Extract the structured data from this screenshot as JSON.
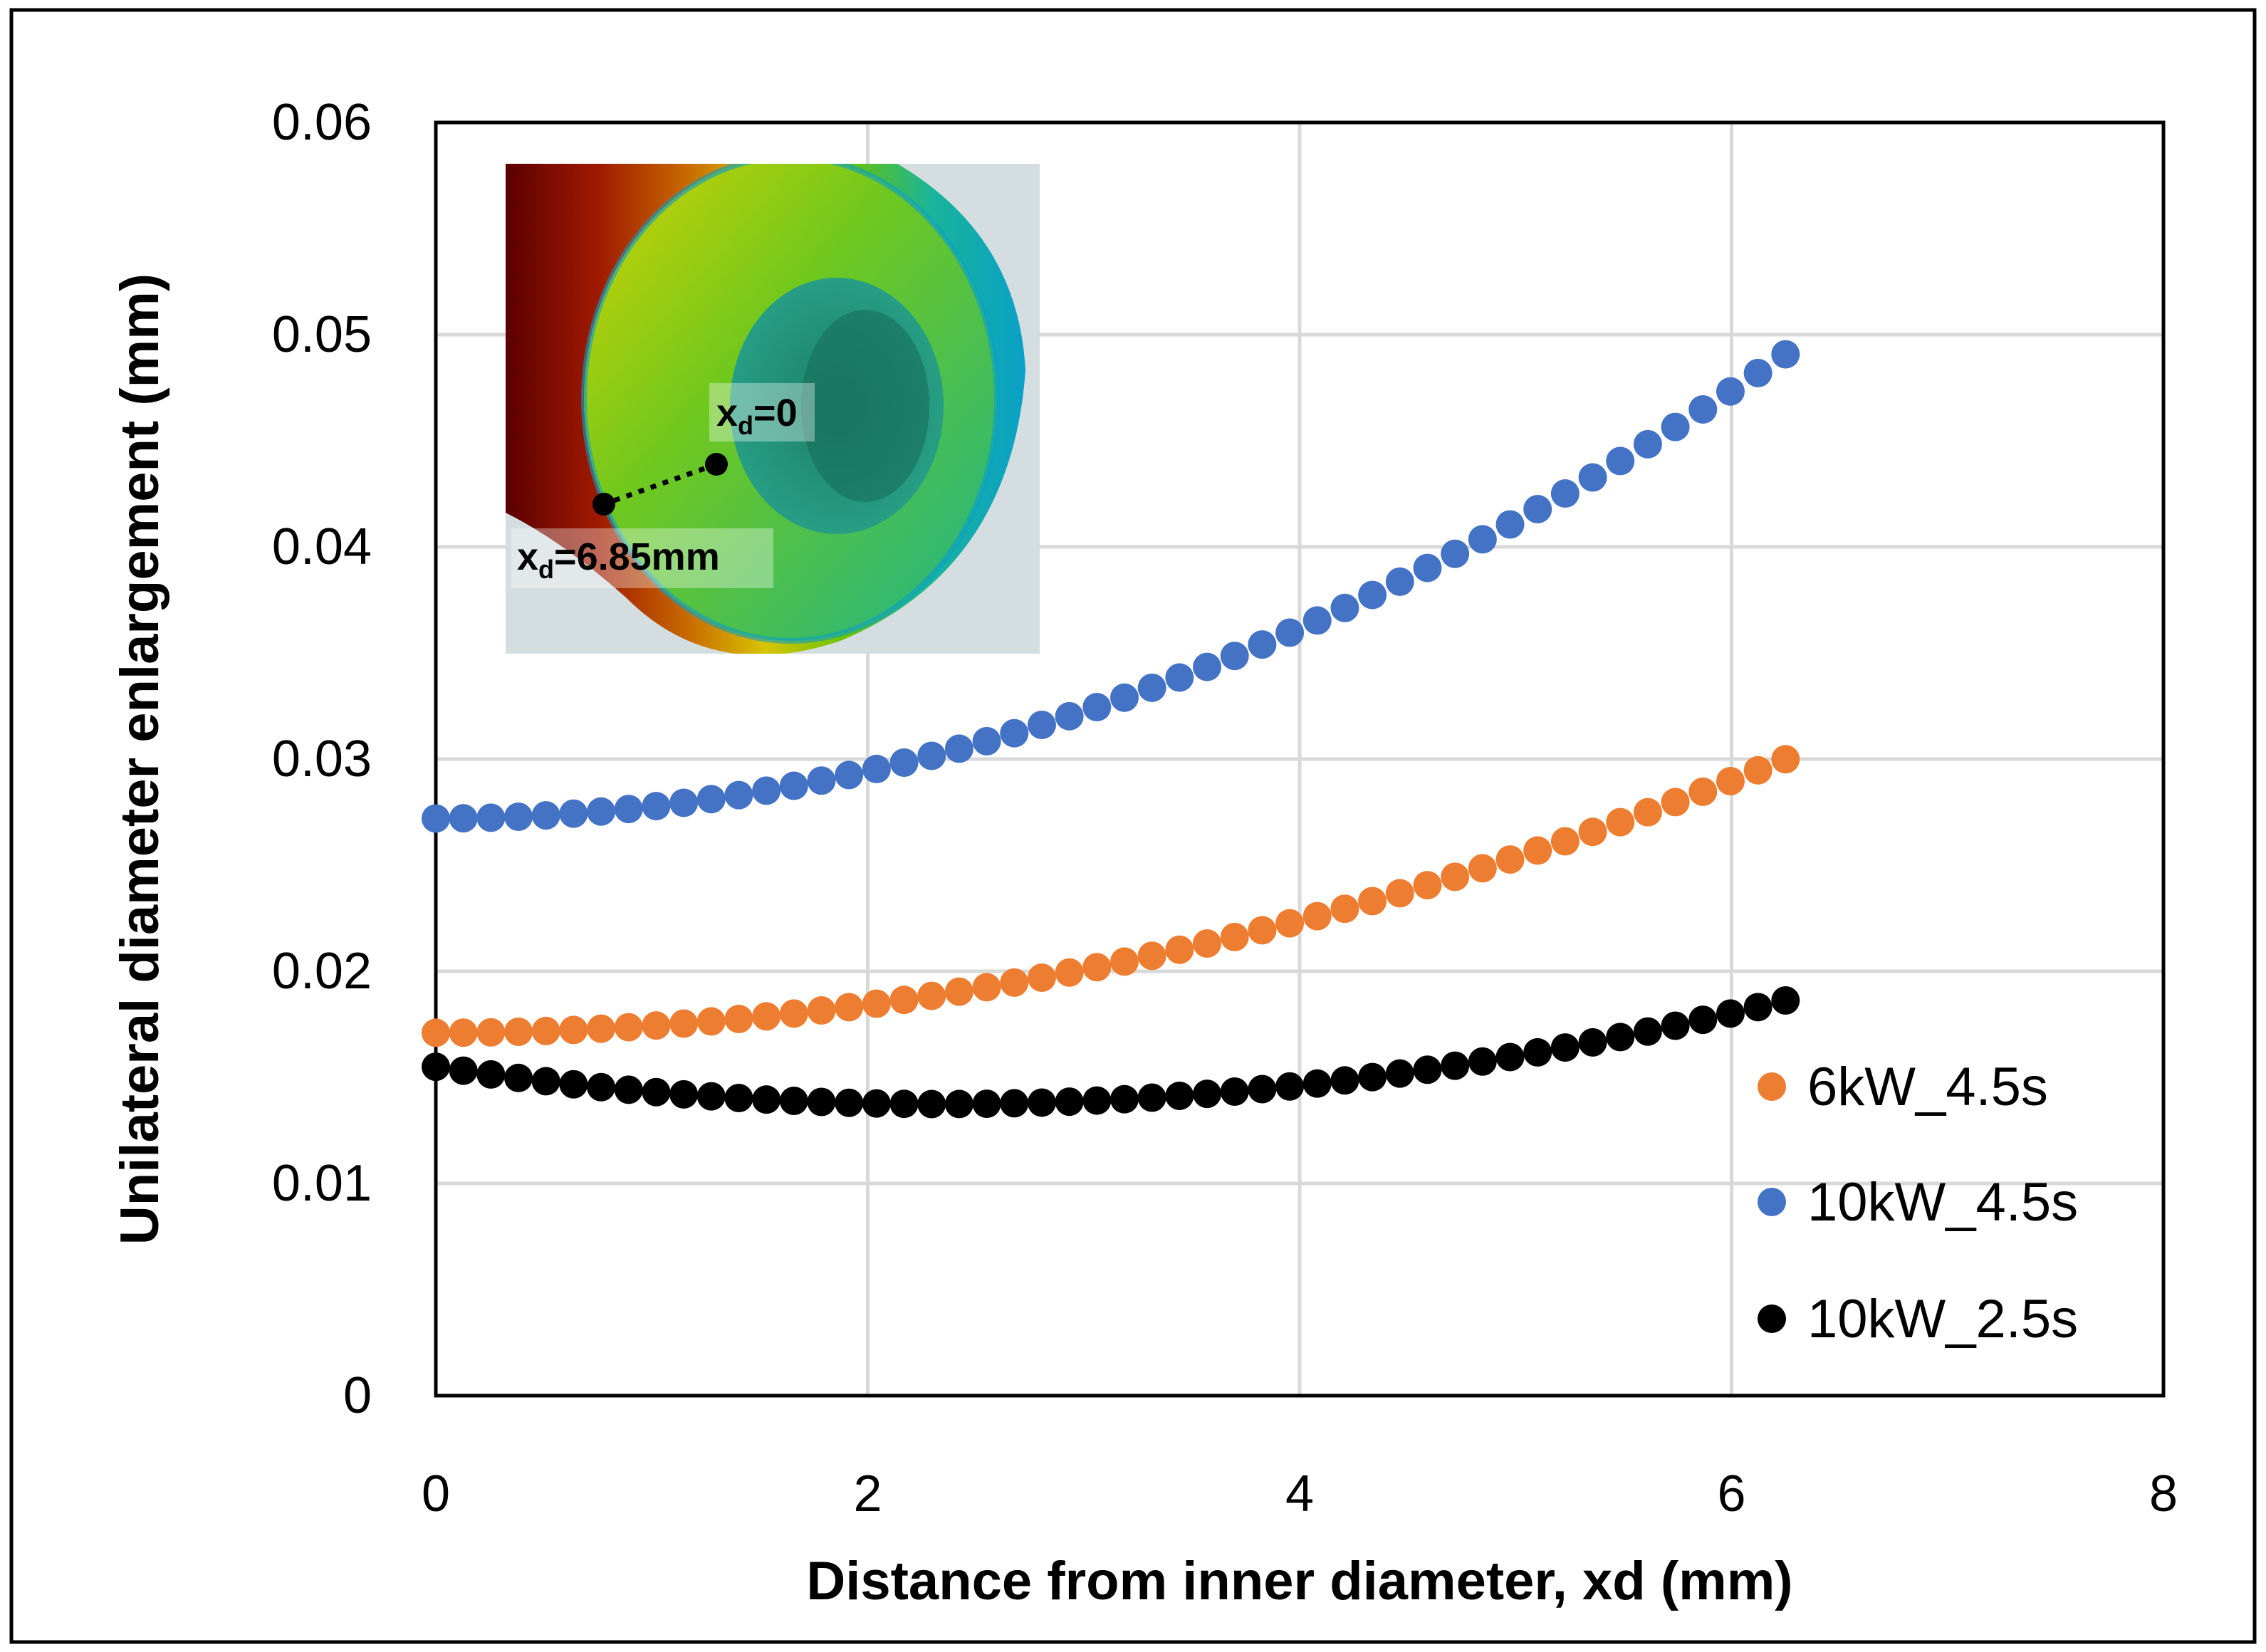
{
  "chart_data": {
    "type": "scatter",
    "title": "",
    "xlabel": "Distance from inner diameter, xd (mm)",
    "ylabel": "Unilateral diameter enlargement (mm)",
    "xlim": [
      0,
      8
    ],
    "ylim": [
      0,
      0.06
    ],
    "x_ticks": [
      0,
      2,
      4,
      6,
      8
    ],
    "y_ticks": [
      0,
      0.01,
      0.02,
      0.03,
      0.04,
      0.05,
      0.06
    ],
    "x_tick_labels": [
      "0",
      "2",
      "4",
      "6",
      "8"
    ],
    "y_tick_labels": [
      "0",
      "0.01",
      "0.02",
      "0.03",
      "0.04",
      "0.05",
      "0.06"
    ],
    "grid": true,
    "legend_position": "bottom-right",
    "x_range": [
      0,
      6.25
    ],
    "n_points": 50,
    "series": [
      {
        "name": "6kW_4.5s",
        "color": "#ED7D31",
        "coef": [
          0.0171,
          0,
          0.00033
        ]
      },
      {
        "name": "10kW_4.5s",
        "color": "#4472C4",
        "coef": [
          0.0272,
          0,
          0.00056
        ]
      },
      {
        "name": "10kW_2.5s",
        "color": "#000000",
        "coef": [
          0.0155,
          -0.0015,
          0.00032
        ]
      }
    ],
    "inset": {
      "label_inner": "x",
      "label_inner_sub": "d",
      "label_inner_value": "=0",
      "label_outer": "x",
      "label_outer_sub": "d",
      "label_outer_value": "=6.85mm"
    }
  }
}
